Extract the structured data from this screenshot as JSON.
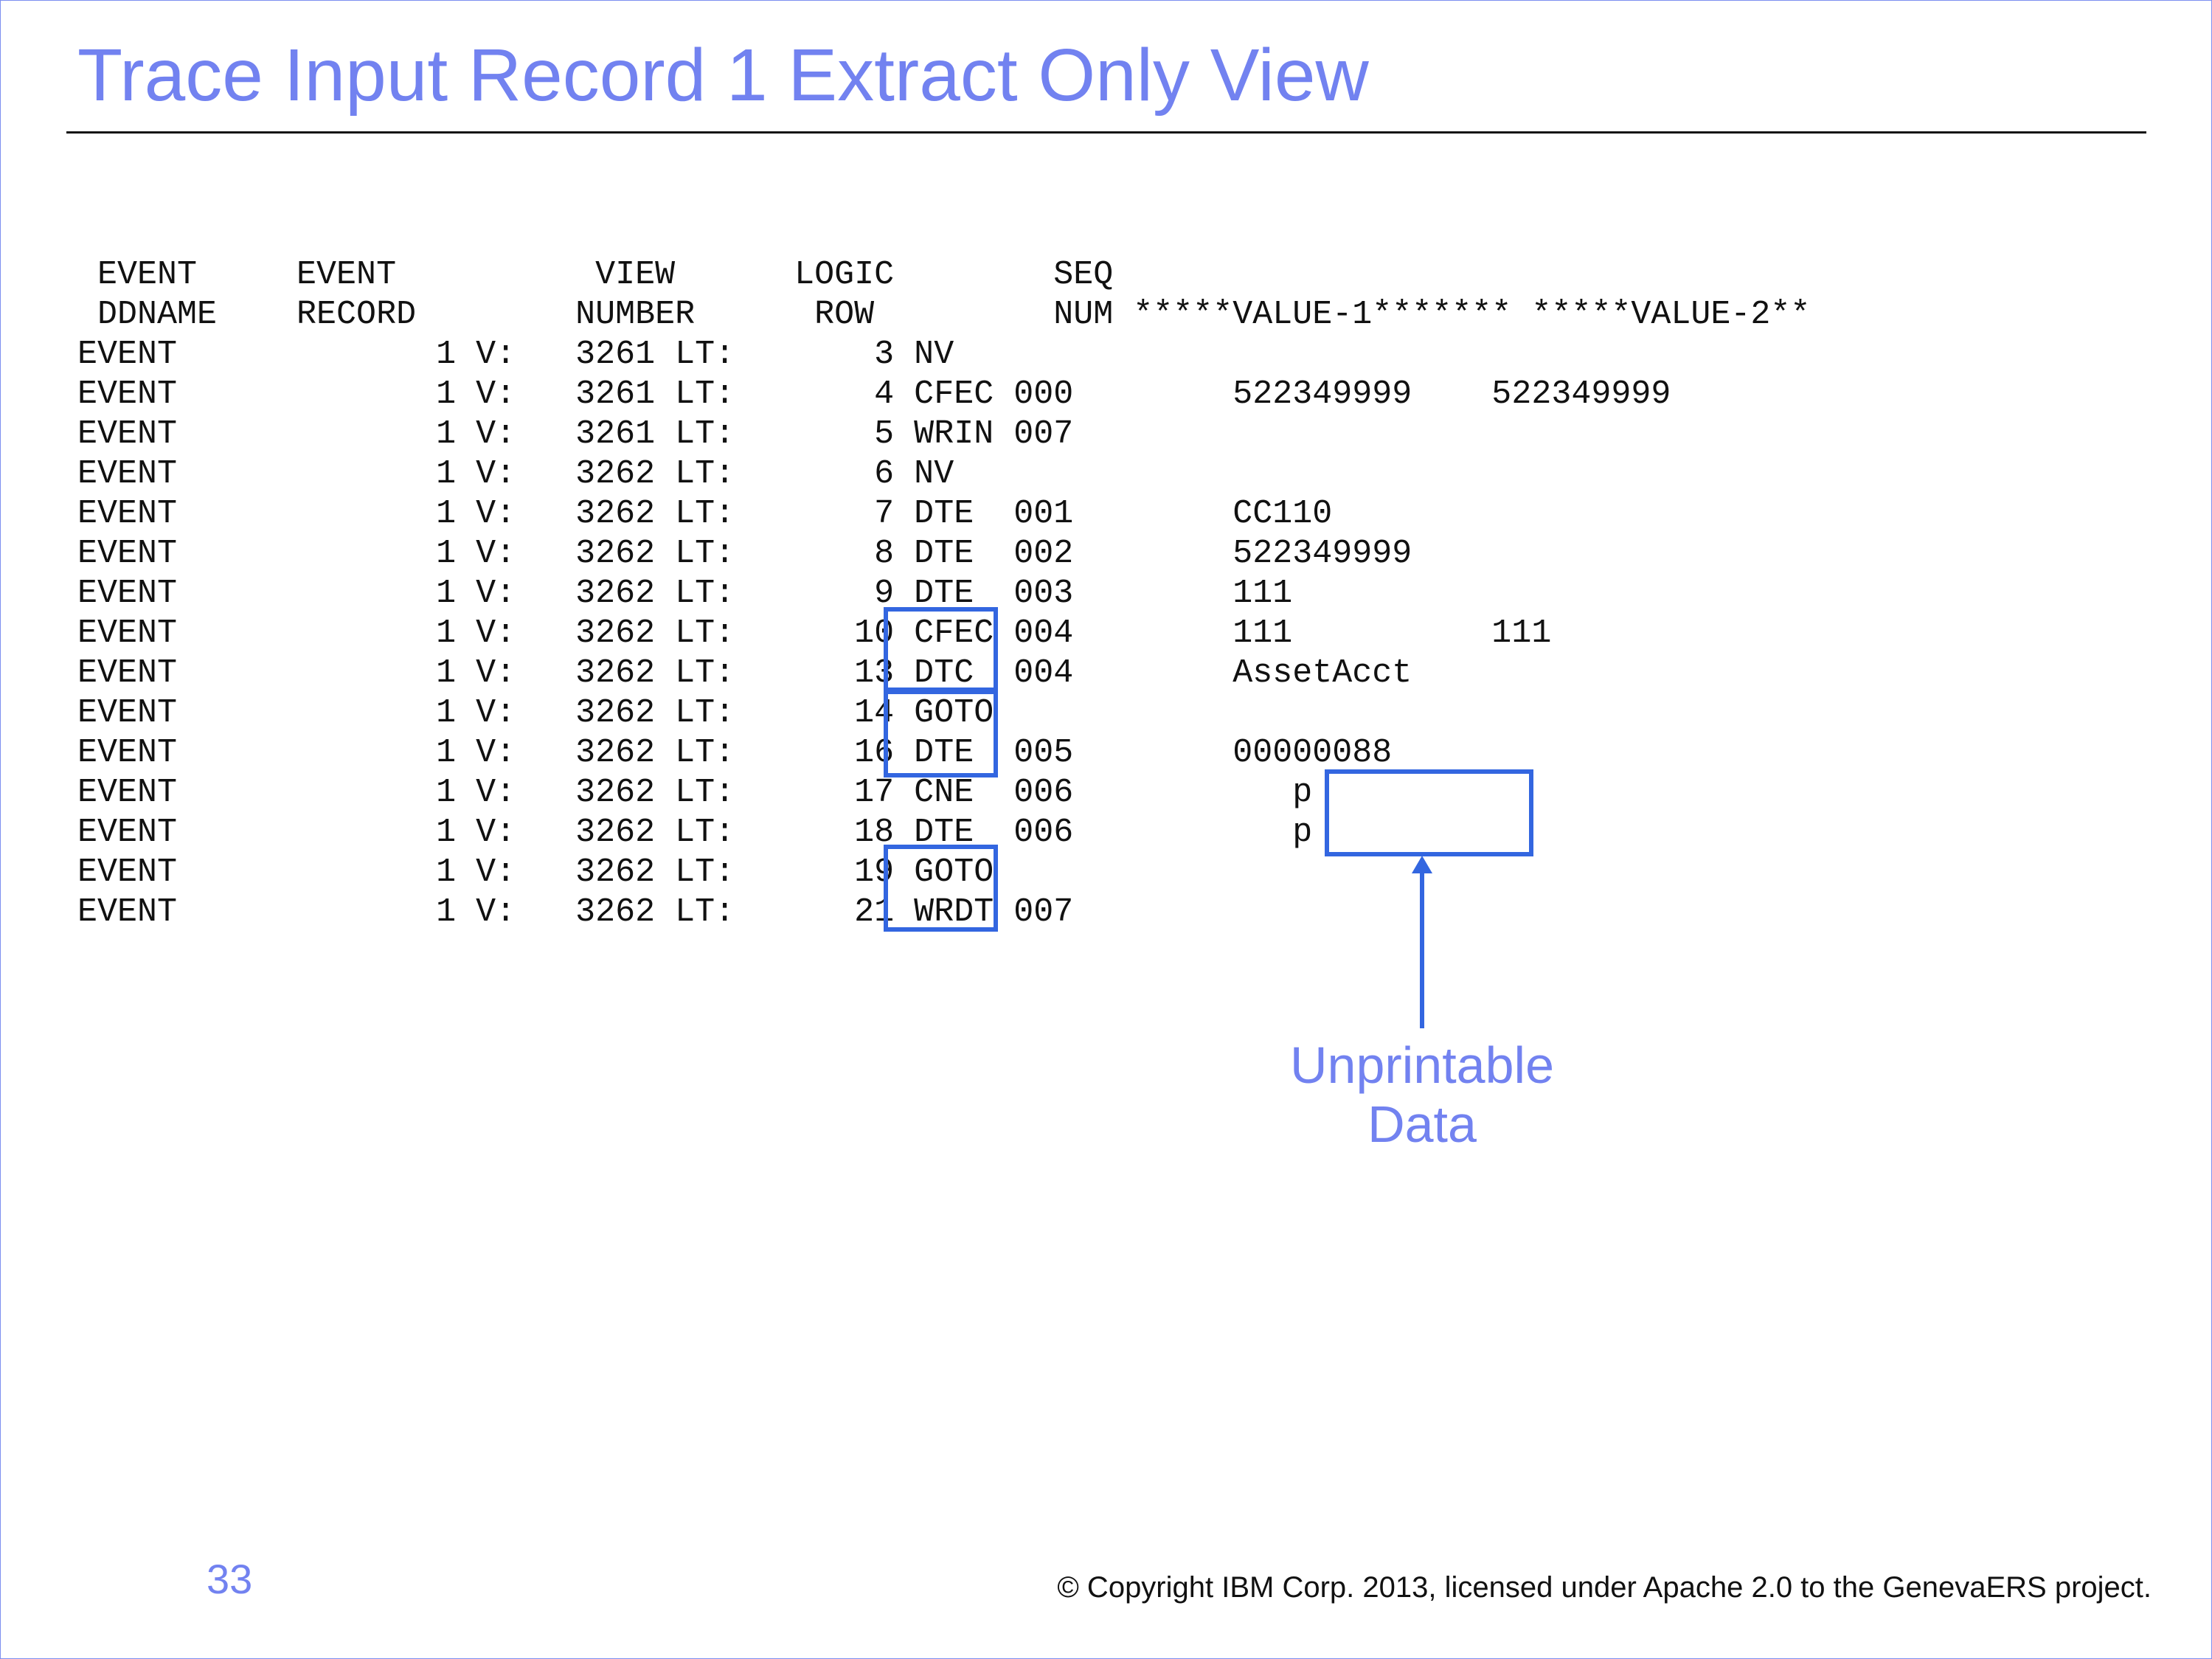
{
  "slide": {
    "title": "Trace Input Record 1 Extract Only View",
    "page_number": "33",
    "copyright": "© Copyright IBM Corp. 2013, licensed under Apache 2.0 to the GenevaERS project."
  },
  "trace": {
    "header_lines": [
      " EVENT     EVENT          VIEW      LOGIC        SEQ",
      " DDNAME    RECORD        NUMBER      ROW         NUM *****VALUE-1******* *****VALUE-2**"
    ],
    "rows": [
      "EVENT             1 V:   3261 LT:       3 NV",
      "EVENT             1 V:   3261 LT:       4 CFEC 000        522349999    522349999",
      "EVENT             1 V:   3261 LT:       5 WRIN 007",
      "EVENT             1 V:   3262 LT:       6 NV",
      "EVENT             1 V:   3262 LT:       7 DTE  001        CC110",
      "EVENT             1 V:   3262 LT:       8 DTE  002        522349999",
      "EVENT             1 V:   3262 LT:       9 DTE  003        111",
      "EVENT             1 V:   3262 LT:      10 CFEC 004        111          111",
      "EVENT             1 V:   3262 LT:      13 DTC  004        AssetAcct",
      "EVENT             1 V:   3262 LT:      14 GOTO",
      "EVENT             1 V:   3262 LT:      16 DTE  005        00000088",
      "EVENT             1 V:   3262 LT:      17 CNE  006           p",
      "EVENT             1 V:   3262 LT:      18 DTE  006           p",
      "EVENT             1 V:   3262 LT:      19 GOTO",
      "EVENT             1 V:   3262 LT:      21 WRDT 007"
    ]
  },
  "callout": {
    "lines": [
      "Unprintable",
      "Data"
    ]
  }
}
